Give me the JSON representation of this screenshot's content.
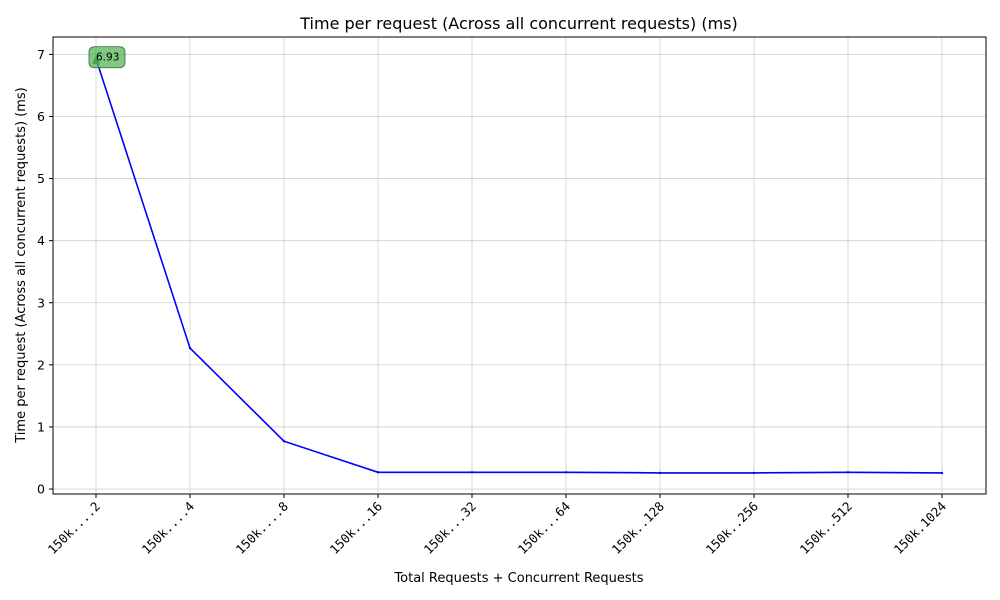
{
  "chart_data": {
    "type": "line",
    "title": "Time per request (Across all concurrent requests) (ms)",
    "xlabel": "Total Requests + Concurrent Requests",
    "ylabel": "Time per request (Across all concurrent requests) (ms)",
    "categories": [
      "150k....2",
      "150k....4",
      "150k....8",
      "150k...16",
      "150k...32",
      "150k...64",
      "150k..128",
      "150k..256",
      "150k..512",
      "150k.1024"
    ],
    "series": [
      {
        "values": [
          6.93,
          2.27,
          0.77,
          0.27,
          0.27,
          0.27,
          0.26,
          0.26,
          0.27,
          0.26
        ],
        "color": "#0000ff"
      }
    ],
    "y_ticks": [
      0,
      1,
      2,
      3,
      4,
      5,
      6,
      7
    ],
    "ylim": [
      -0.08,
      7.28
    ],
    "grid": true,
    "annotations": [
      {
        "category_index": 0,
        "value": 6.93,
        "text": "6.93",
        "color": "#4caf50"
      }
    ]
  }
}
